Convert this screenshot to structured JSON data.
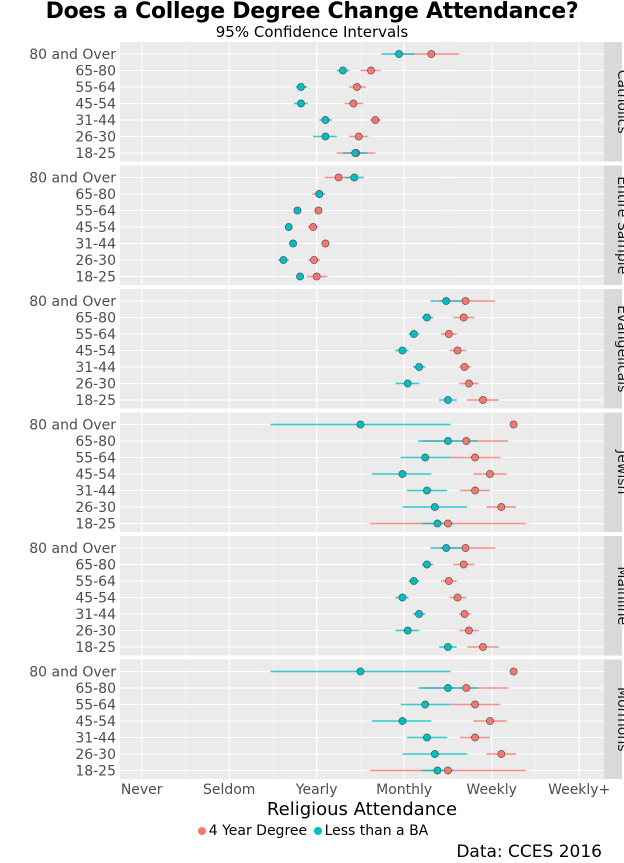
{
  "chart_data": {
    "type": "scatter",
    "subtype": "dot-and-whisker, faceted",
    "title": "Does a College Degree Change Attendance?",
    "subtitle": "95% Confidence Intervals",
    "xlabel": "Religious Attendance",
    "x_ticks": [
      "Never",
      "Seldom",
      "Yearly",
      "Monthly",
      "Weekly",
      "Weekly+"
    ],
    "x_tick_values": [
      1,
      2,
      3,
      4,
      5,
      6
    ],
    "xlim": [
      0.75,
      6.3
    ],
    "grid": true,
    "legend_position": "bottom",
    "caption": "Data: CCES 2016",
    "age_groups": [
      "80 and Over",
      "65-80",
      "55-64",
      "45-54",
      "31-44",
      "26-30",
      "18-25"
    ],
    "series": [
      {
        "name": "4 Year Degree",
        "color": "#F8766D"
      },
      {
        "name": "Less than a BA",
        "color": "#00BFC4"
      }
    ],
    "facets": [
      {
        "name": "Catholics",
        "degree": [
          [
            4.31,
            3.97,
            4.63
          ],
          [
            3.62,
            3.5,
            3.73
          ],
          [
            3.46,
            3.37,
            3.56
          ],
          [
            3.42,
            3.32,
            3.53
          ],
          [
            3.67,
            3.61,
            3.73
          ],
          [
            3.48,
            3.37,
            3.59
          ],
          [
            3.45,
            3.23,
            3.67
          ]
        ],
        "less_ba": [
          [
            3.94,
            3.74,
            4.12
          ],
          [
            3.3,
            3.23,
            3.37
          ],
          [
            2.82,
            2.76,
            2.89
          ],
          [
            2.82,
            2.74,
            2.9
          ],
          [
            3.1,
            3.03,
            3.17
          ],
          [
            3.1,
            2.96,
            3.23
          ],
          [
            3.44,
            3.3,
            3.58
          ]
        ]
      },
      {
        "name": "Entire Sample",
        "degree": [
          [
            3.25,
            3.09,
            3.4
          ],
          [
            3.03,
            2.95,
            3.1
          ],
          [
            3.02,
            2.98,
            3.06
          ],
          [
            2.96,
            2.9,
            3.02
          ],
          [
            3.1,
            3.07,
            3.13
          ],
          [
            2.97,
            2.9,
            3.04
          ],
          [
            3.0,
            2.89,
            3.12
          ]
        ],
        "less_ba": [
          [
            3.43,
            3.32,
            3.54
          ],
          [
            3.03,
            3.0,
            3.06
          ],
          [
            2.78,
            2.75,
            2.81
          ],
          [
            2.68,
            2.65,
            2.71
          ],
          [
            2.73,
            2.7,
            2.76
          ],
          [
            2.62,
            2.56,
            2.68
          ],
          [
            2.81,
            2.77,
            2.85
          ]
        ]
      },
      {
        "name": "Evangelicals",
        "degree": [
          [
            4.7,
            4.4,
            5.04
          ],
          [
            4.68,
            4.56,
            4.8
          ],
          [
            4.51,
            4.42,
            4.6
          ],
          [
            4.61,
            4.52,
            4.71
          ],
          [
            4.69,
            4.63,
            4.76
          ],
          [
            4.74,
            4.63,
            4.85
          ],
          [
            4.9,
            4.72,
            5.08
          ]
        ],
        "less_ba": [
          [
            4.48,
            4.3,
            4.65
          ],
          [
            4.26,
            4.2,
            4.33
          ],
          [
            4.11,
            4.05,
            4.17
          ],
          [
            3.98,
            3.9,
            4.05
          ],
          [
            4.17,
            4.1,
            4.24
          ],
          [
            4.04,
            3.9,
            4.17
          ],
          [
            4.5,
            4.4,
            4.6
          ]
        ]
      },
      {
        "name": "Jewish",
        "degree": [
          [
            5.25,
            5.25,
            5.25
          ],
          [
            4.71,
            4.2,
            5.19
          ],
          [
            4.81,
            4.53,
            5.1
          ],
          [
            4.98,
            4.79,
            5.17
          ],
          [
            4.81,
            4.64,
            4.98
          ],
          [
            5.11,
            4.94,
            5.28
          ],
          [
            4.5,
            3.61,
            5.39
          ]
        ],
        "less_ba": [
          [
            3.5,
            2.47,
            4.53
          ],
          [
            4.5,
            4.16,
            4.84
          ],
          [
            4.24,
            3.96,
            4.53
          ],
          [
            3.98,
            3.63,
            4.31
          ],
          [
            4.26,
            4.03,
            4.49
          ],
          [
            4.35,
            3.98,
            4.72
          ],
          [
            4.38,
            4.2,
            4.56
          ]
        ]
      },
      {
        "name": "Mainline",
        "degree": [
          [
            4.7,
            4.4,
            5.04
          ],
          [
            4.68,
            4.56,
            4.8
          ],
          [
            4.51,
            4.42,
            4.6
          ],
          [
            4.61,
            4.52,
            4.71
          ],
          [
            4.69,
            4.63,
            4.76
          ],
          [
            4.74,
            4.63,
            4.85
          ],
          [
            4.9,
            4.72,
            5.08
          ]
        ],
        "less_ba": [
          [
            4.48,
            4.3,
            4.65
          ],
          [
            4.26,
            4.2,
            4.33
          ],
          [
            4.11,
            4.05,
            4.17
          ],
          [
            3.98,
            3.9,
            4.05
          ],
          [
            4.17,
            4.1,
            4.24
          ],
          [
            4.04,
            3.9,
            4.17
          ],
          [
            4.5,
            4.4,
            4.6
          ]
        ]
      },
      {
        "name": "Mormons",
        "degree": [
          [
            5.25,
            5.25,
            5.25
          ],
          [
            4.71,
            4.2,
            5.19
          ],
          [
            4.81,
            4.53,
            5.1
          ],
          [
            4.98,
            4.79,
            5.17
          ],
          [
            4.81,
            4.64,
            4.98
          ],
          [
            5.11,
            4.94,
            5.28
          ],
          [
            4.5,
            3.61,
            5.39
          ]
        ],
        "less_ba": [
          [
            3.5,
            2.47,
            4.53
          ],
          [
            4.5,
            4.16,
            4.84
          ],
          [
            4.24,
            3.96,
            4.53
          ],
          [
            3.98,
            3.63,
            4.31
          ],
          [
            4.26,
            4.03,
            4.49
          ],
          [
            4.35,
            3.98,
            4.72
          ],
          [
            4.38,
            4.2,
            4.56
          ]
        ]
      }
    ],
    "value_format": "[estimate, ci_low, ci_high]"
  }
}
